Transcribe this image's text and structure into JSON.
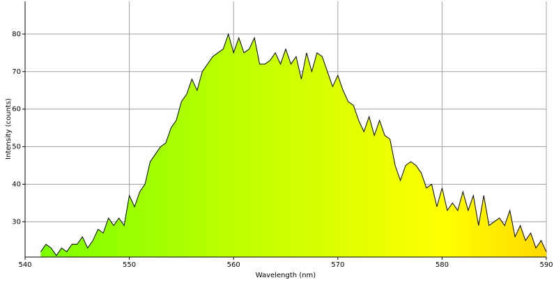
{
  "chart_data": {
    "type": "area-line",
    "x_label": "Wavelength (nm)",
    "y_label": "Intensity (counts)",
    "x": [
      541.5,
      542,
      542.5,
      543,
      543.5,
      544,
      544.5,
      545,
      545.5,
      546,
      546.5,
      547,
      547.5,
      548,
      548.5,
      549,
      549.5,
      550,
      550.5,
      551,
      551.5,
      552,
      552.5,
      553,
      553.5,
      554,
      554.5,
      555,
      555.5,
      556,
      556.5,
      557,
      557.5,
      558,
      558.5,
      559,
      559.5,
      560,
      560.5,
      561,
      561.5,
      562,
      562.5,
      563,
      563.5,
      564,
      564.5,
      565,
      565.5,
      566,
      566.5,
      567,
      567.5,
      568,
      568.5,
      569,
      569.5,
      570,
      570.5,
      571,
      571.5,
      572,
      572.5,
      573,
      573.5,
      574,
      574.5,
      575,
      575.5,
      576,
      576.5,
      577,
      577.5,
      578,
      578.5,
      579,
      579.5,
      580,
      580.5,
      581,
      581.5,
      582,
      582.5,
      583,
      583.5,
      584,
      584.5,
      585,
      585.5,
      586,
      586.5,
      587,
      587.5,
      588,
      588.5,
      589,
      589.5,
      590
    ],
    "values": [
      22,
      24,
      23,
      21,
      23,
      22,
      24,
      24,
      26,
      23,
      25,
      28,
      27,
      31,
      29,
      31,
      29,
      37,
      34,
      38,
      40,
      46,
      48,
      50,
      51,
      55,
      57,
      62,
      64,
      68,
      65,
      70,
      72,
      74,
      75,
      76,
      80,
      75,
      79,
      75,
      76,
      79,
      72,
      72,
      73,
      75,
      72,
      76,
      72,
      74,
      68,
      75,
      70,
      75,
      74,
      70,
      66,
      69,
      65,
      62,
      61,
      57,
      54,
      58,
      53,
      57,
      53,
      52,
      45,
      41,
      45,
      46,
      45,
      43,
      39,
      40,
      34,
      39,
      33,
      35,
      33,
      38,
      33,
      37,
      29,
      37,
      29,
      30,
      31,
      29,
      33,
      26,
      29,
      25,
      27,
      23,
      25,
      22
    ],
    "color": "#000000",
    "xlim": [
      540,
      590
    ],
    "ylim": [
      20.6,
      88.7
    ],
    "xticks": [
      540,
      550,
      560,
      570,
      580,
      590
    ],
    "yticks": [
      30,
      40,
      50,
      60,
      70,
      80
    ],
    "grid": true
  }
}
